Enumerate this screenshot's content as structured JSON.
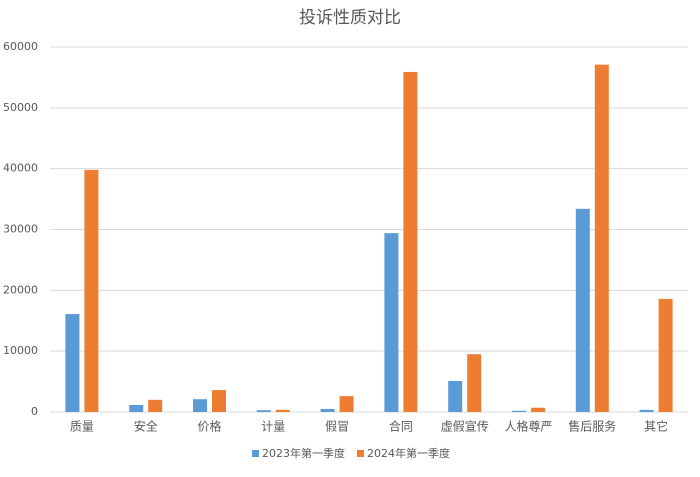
{
  "chart_data": {
    "type": "bar",
    "title": "投诉性质对比",
    "categories": [
      "质量",
      "安全",
      "价格",
      "计量",
      "假冒",
      "合同",
      "虚假宣传",
      "人格尊严",
      "售后服务",
      "其它"
    ],
    "series": [
      {
        "name": "2023年第一季度",
        "color": "#5b9bd5",
        "values": [
          16100,
          1150,
          2100,
          300,
          500,
          29400,
          5100,
          200,
          33400,
          350
        ]
      },
      {
        "name": "2024年第一季度",
        "color": "#ed7d31",
        "values": [
          39800,
          2000,
          3600,
          350,
          2600,
          55900,
          9500,
          700,
          57100,
          18600
        ]
      }
    ],
    "ylim": [
      0,
      60000
    ],
    "yticks": [
      0,
      10000,
      20000,
      30000,
      40000,
      50000,
      60000
    ],
    "grid": true,
    "legend": "bottom"
  }
}
